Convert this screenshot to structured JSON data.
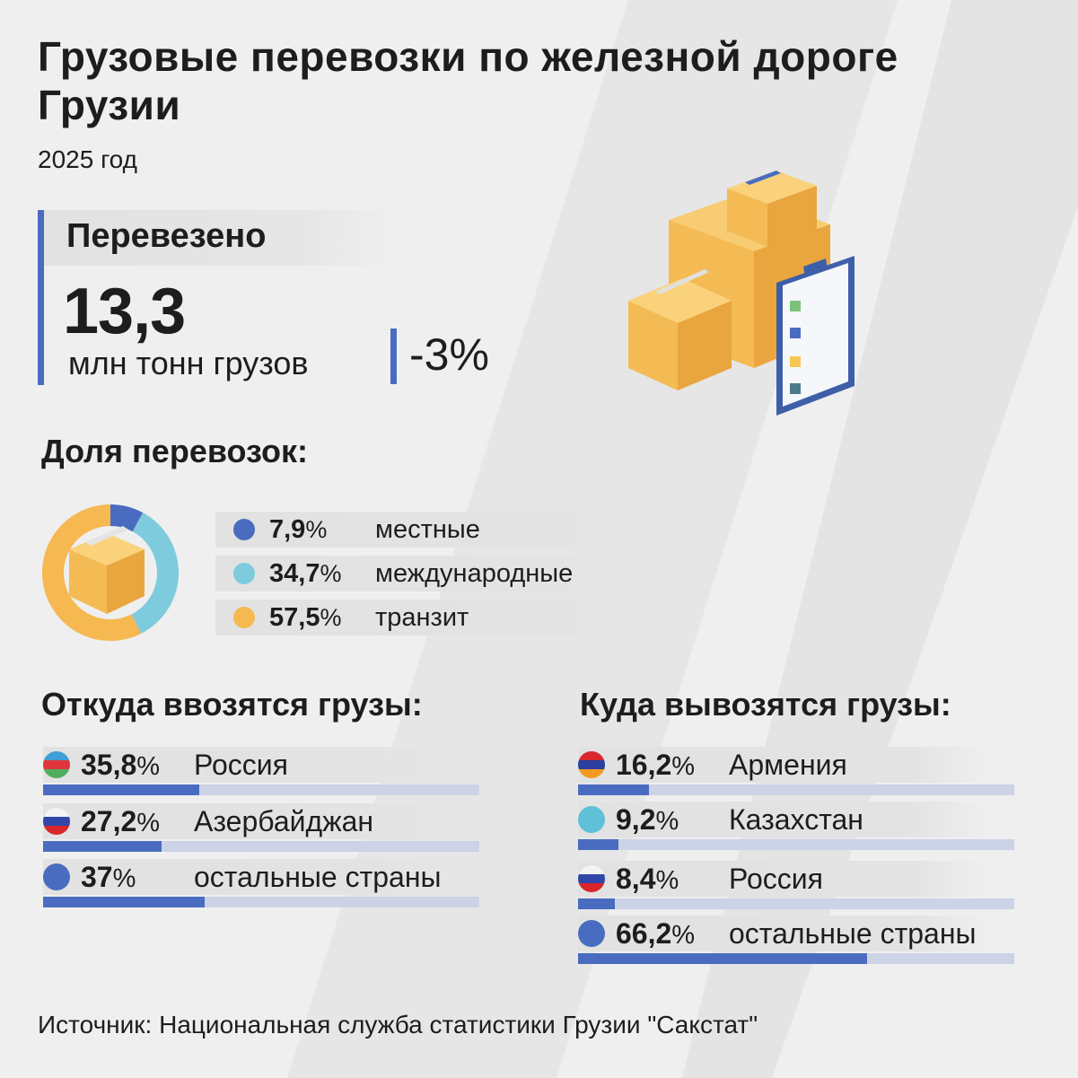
{
  "title": "Грузовые перевозки по железной дороге Грузии",
  "year": "2025 год",
  "summary": {
    "label": "Перевезено",
    "value": "13,3",
    "unit": "млн тонн грузов",
    "change": "-3%"
  },
  "colors": {
    "accent": "#4a6cc0",
    "light_blue": "#7ecbdd",
    "orange": "#f6b851",
    "track": "#ccd3e6"
  },
  "chart_data": [
    {
      "type": "pie",
      "title": "Доля перевозок:",
      "donut": true,
      "categories": [
        "местные",
        "международные",
        "транзит"
      ],
      "values": [
        7.9,
        34.7,
        57.5
      ],
      "labels": [
        "7,9",
        "34,7",
        "57,5"
      ],
      "colors": [
        "#4a6cc0",
        "#7ecbdd",
        "#f6b851"
      ],
      "center_icon": "cardboard-box-icon"
    },
    {
      "type": "bar",
      "title": "Откуда ввозятся грузы:",
      "orientation": "horizontal",
      "categories": [
        "Россия",
        "Азербайджан",
        "остальные страны"
      ],
      "values": [
        35.8,
        27.2,
        37
      ],
      "labels": [
        "35,8",
        "27,2",
        "37"
      ],
      "flags": [
        "azerbaijan-flag-icon",
        "russia-flag-icon",
        "blue-circle-icon"
      ],
      "xlim": [
        0,
        100
      ]
    },
    {
      "type": "bar",
      "title": "Куда вывозятся грузы:",
      "orientation": "horizontal",
      "categories": [
        "Армения",
        "Казахстан",
        "Россия",
        "остальные страны"
      ],
      "values": [
        16.2,
        9.2,
        8.4,
        66.2
      ],
      "labels": [
        "16,2",
        "9,2",
        "8,4",
        "66,2"
      ],
      "flags": [
        "armenia-flag-icon",
        "kazakhstan-flag-icon",
        "russia-flag-icon",
        "blue-circle-icon"
      ],
      "xlim": [
        0,
        100
      ]
    }
  ],
  "percent_sign": "%",
  "source": "Источник: Национальная служба статистики Грузии \"Сакстат\""
}
